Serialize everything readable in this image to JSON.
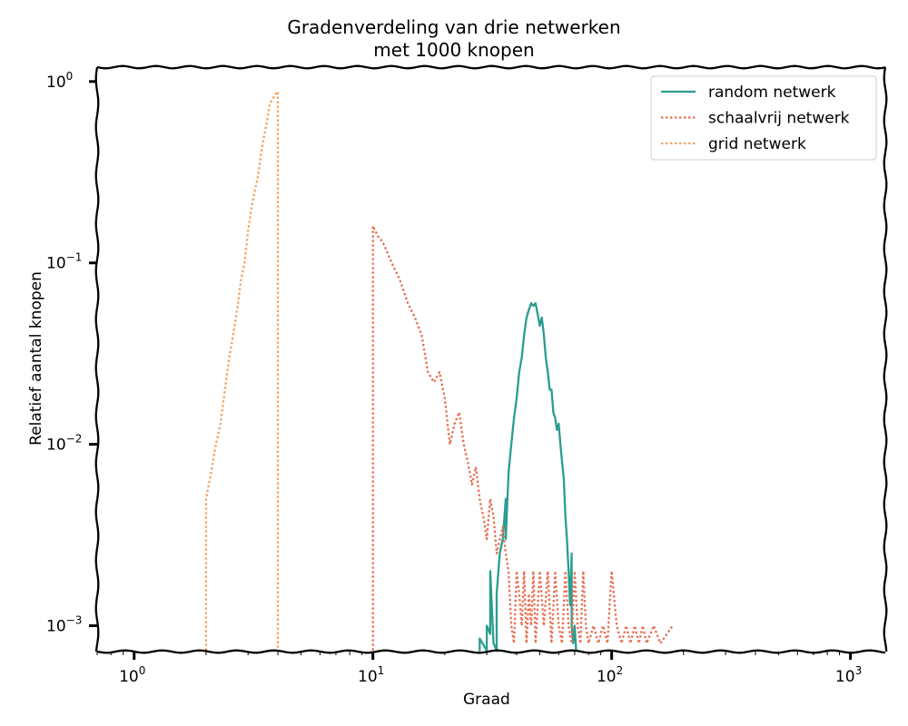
{
  "chart_data": {
    "type": "line",
    "title": [
      "Gradenverdeling van drie netwerken",
      "met 1000 knopen"
    ],
    "xlabel": "Graad",
    "ylabel": "Relatief aantal knopen",
    "xscale": "log",
    "yscale": "log",
    "xlim": [
      0.7,
      1400
    ],
    "ylim": [
      0.00072,
      1.2
    ],
    "xticks": [
      {
        "value": 1,
        "base": "10",
        "exp": "0"
      },
      {
        "value": 10,
        "base": "10",
        "exp": "1"
      },
      {
        "value": 100,
        "base": "10",
        "exp": "2"
      },
      {
        "value": 1000,
        "base": "10",
        "exp": "3"
      }
    ],
    "yticks": [
      {
        "value": 0.001,
        "base": "10",
        "exp": "−3"
      },
      {
        "value": 0.01,
        "base": "10",
        "exp": "−2"
      },
      {
        "value": 0.1,
        "base": "10",
        "exp": "−1"
      },
      {
        "value": 1,
        "base": "10",
        "exp": "0"
      }
    ],
    "grid": false,
    "legend_position": "top-right",
    "series": [
      {
        "name": "random netwerk",
        "color": "#2a9d8f",
        "style": "solid",
        "x": [
          28,
          28,
          30,
          30,
          31,
          31,
          32,
          33,
          33,
          34,
          35,
          36,
          36,
          37,
          38,
          39,
          40,
          41,
          42,
          43,
          44,
          45,
          46,
          47,
          48,
          49,
          50,
          51,
          52,
          53,
          54,
          55,
          56,
          57,
          58,
          59,
          60,
          61,
          62,
          63,
          64,
          65,
          66,
          67,
          68,
          68,
          69,
          70,
          71
        ],
        "y": [
          0.00073,
          0.00085,
          0.00073,
          0.001,
          0.0009,
          0.002,
          0.0008,
          0.00073,
          0.0015,
          0.0025,
          0.003,
          0.005,
          0.003,
          0.007,
          0.01,
          0.014,
          0.018,
          0.025,
          0.03,
          0.04,
          0.05,
          0.055,
          0.06,
          0.058,
          0.06,
          0.052,
          0.045,
          0.05,
          0.04,
          0.03,
          0.025,
          0.02,
          0.02,
          0.015,
          0.014,
          0.012,
          0.013,
          0.01,
          0.008,
          0.0065,
          0.004,
          0.003,
          0.002,
          0.0013,
          0.0025,
          0.001,
          0.0008,
          0.001,
          0.00073
        ]
      },
      {
        "name": "schaalvrij netwerk",
        "color": "#e76f51",
        "style": "dotted",
        "x": [
          10,
          10,
          10.5,
          11,
          12,
          13,
          14,
          15,
          16,
          17,
          18,
          19,
          20,
          21,
          22,
          23,
          24,
          25,
          26,
          27,
          28,
          29,
          30,
          31,
          32,
          33,
          34,
          35,
          36,
          37,
          38,
          39,
          40,
          41,
          42,
          43,
          44,
          45,
          46,
          47,
          48,
          50,
          52,
          54,
          56,
          58,
          60,
          62,
          64,
          66,
          68,
          70,
          72,
          74,
          76,
          78,
          80,
          84,
          88,
          92,
          96,
          100,
          105,
          110,
          115,
          120,
          125,
          130,
          135,
          140,
          150,
          160,
          180
        ],
        "y": [
          0.00073,
          0.16,
          0.14,
          0.13,
          0.1,
          0.08,
          0.06,
          0.05,
          0.04,
          0.025,
          0.022,
          0.025,
          0.018,
          0.01,
          0.013,
          0.015,
          0.01,
          0.008,
          0.006,
          0.0075,
          0.005,
          0.004,
          0.003,
          0.005,
          0.004,
          0.0025,
          0.003,
          0.0035,
          0.0025,
          0.002,
          0.001,
          0.0008,
          0.002,
          0.0015,
          0.001,
          0.002,
          0.0008,
          0.0015,
          0.001,
          0.002,
          0.0008,
          0.002,
          0.001,
          0.002,
          0.0008,
          0.002,
          0.001,
          0.0008,
          0.002,
          0.001,
          0.0008,
          0.002,
          0.001,
          0.0008,
          0.002,
          0.001,
          0.0008,
          0.001,
          0.0008,
          0.001,
          0.0008,
          0.002,
          0.001,
          0.0008,
          0.001,
          0.0008,
          0.001,
          0.0008,
          0.001,
          0.0008,
          0.001,
          0.0008,
          0.001
        ]
      },
      {
        "name": "grid netwerk",
        "color": "#f4a261",
        "style": "dotted",
        "x": [
          2,
          2,
          2.1,
          2.2,
          2.3,
          2.4,
          2.5,
          2.6,
          2.7,
          2.8,
          2.9,
          3.0,
          3.1,
          3.2,
          3.3,
          3.4,
          3.5,
          3.6,
          3.7,
          3.8,
          3.9,
          4,
          4
        ],
        "y": [
          0.00073,
          0.005,
          0.007,
          0.01,
          0.013,
          0.02,
          0.03,
          0.04,
          0.055,
          0.08,
          0.1,
          0.15,
          0.2,
          0.25,
          0.3,
          0.4,
          0.5,
          0.6,
          0.75,
          0.8,
          0.85,
          0.88,
          0.00073
        ]
      }
    ]
  }
}
